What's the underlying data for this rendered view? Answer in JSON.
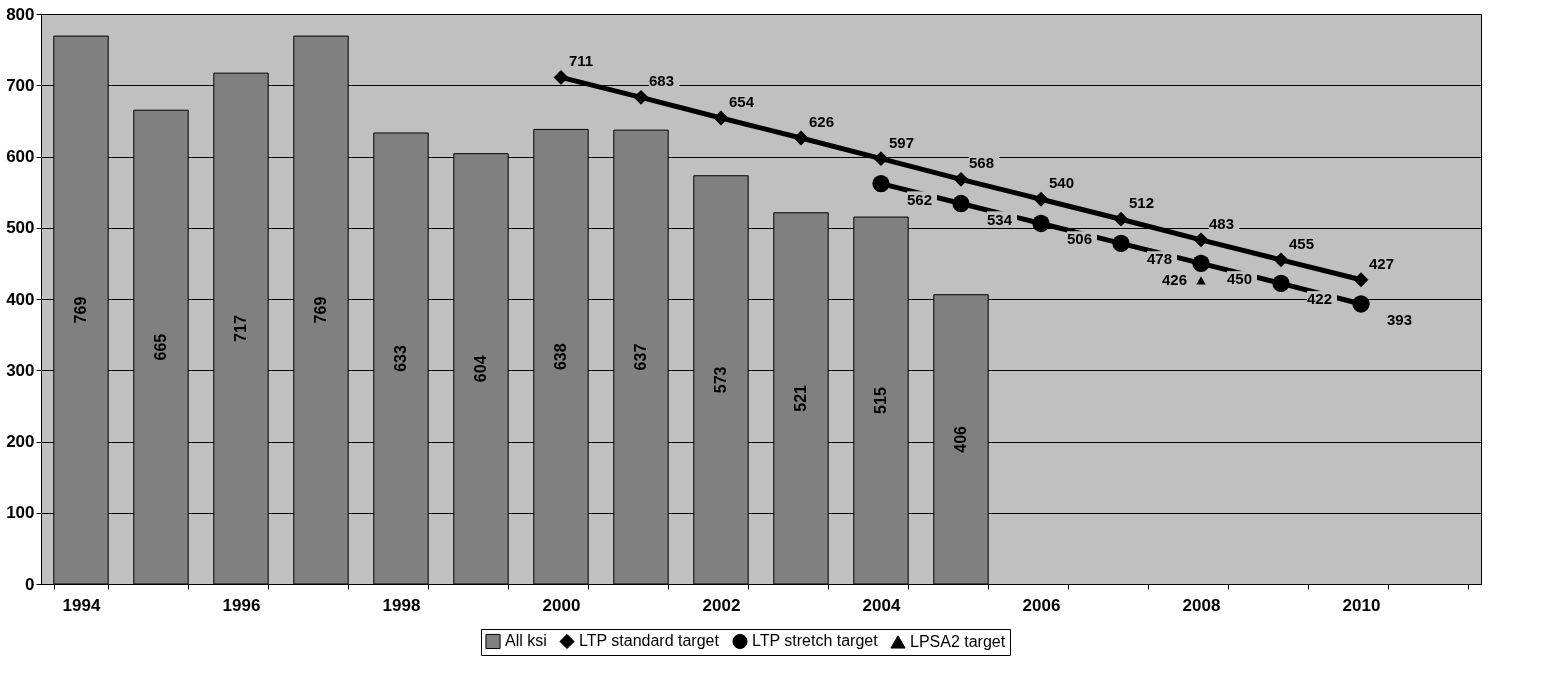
{
  "chart_data": {
    "type": "bar",
    "categories": [
      "1994",
      null,
      "1996",
      null,
      "1998",
      null,
      "2000",
      null,
      "2002",
      null,
      "2004",
      null,
      "2006",
      null,
      "2008",
      null,
      "2010",
      null
    ],
    "series": [
      {
        "name": "All ksi",
        "color": "#808080",
        "values": [
          769,
          665,
          717,
          769,
          633,
          604,
          638,
          637,
          573,
          521,
          515,
          406,
          null,
          null,
          null,
          null,
          null,
          null
        ]
      },
      {
        "name": "LTP standard target",
        "type": "line",
        "marker": "diamond",
        "color": "#000000",
        "values": [
          null,
          null,
          null,
          null,
          null,
          null,
          711,
          683,
          654,
          626,
          597,
          568,
          540,
          512,
          483,
          455,
          427,
          null
        ]
      },
      {
        "name": "LTP stretch target",
        "type": "line",
        "marker": "circle",
        "color": "#000000",
        "values": [
          null,
          null,
          null,
          null,
          null,
          null,
          null,
          null,
          null,
          null,
          562,
          534,
          506,
          478,
          450,
          422,
          393,
          null
        ]
      },
      {
        "name": "LPSA2 target",
        "type": "scatter",
        "marker": "triangle",
        "color": "#000000",
        "values": [
          null,
          null,
          null,
          null,
          null,
          null,
          null,
          null,
          null,
          null,
          null,
          null,
          null,
          null,
          426,
          null,
          null,
          null
        ]
      }
    ],
    "ylim": [
      0,
      800
    ],
    "yticks": [
      0,
      100,
      200,
      300,
      400,
      500,
      600,
      700,
      800
    ],
    "grid": "y",
    "legend": "bottom",
    "data_labels": true
  }
}
